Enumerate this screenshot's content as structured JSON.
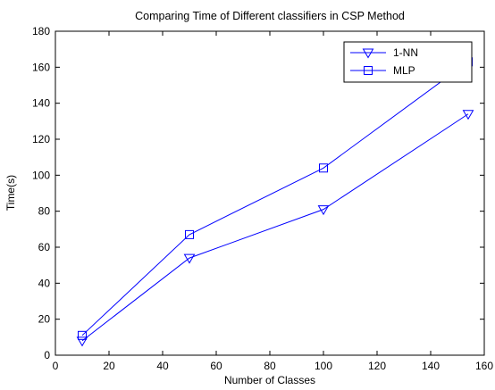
{
  "chart_data": {
    "type": "line",
    "title": "Comparing Time of Different classifiers in CSP Method",
    "xlabel": "Number of Classes",
    "ylabel": "Time(s)",
    "xlim": [
      0,
      160
    ],
    "ylim": [
      0,
      180
    ],
    "xticks": [
      "0",
      "20",
      "40",
      "60",
      "80",
      "100",
      "120",
      "140",
      "160"
    ],
    "yticks": [
      "0",
      "20",
      "40",
      "60",
      "80",
      "100",
      "120",
      "140",
      "160",
      "180"
    ],
    "grid": false,
    "legend_position": "top-right",
    "series": [
      {
        "name": "1-NN",
        "marker": "triangle-down",
        "color": "#0000ff",
        "x": [
          10,
          50,
          100,
          154
        ],
        "values": [
          8,
          54,
          81,
          134
        ]
      },
      {
        "name": "MLP",
        "marker": "square",
        "color": "#0000ff",
        "x": [
          10,
          50,
          100,
          154
        ],
        "values": [
          11,
          67,
          104,
          163
        ]
      }
    ]
  }
}
